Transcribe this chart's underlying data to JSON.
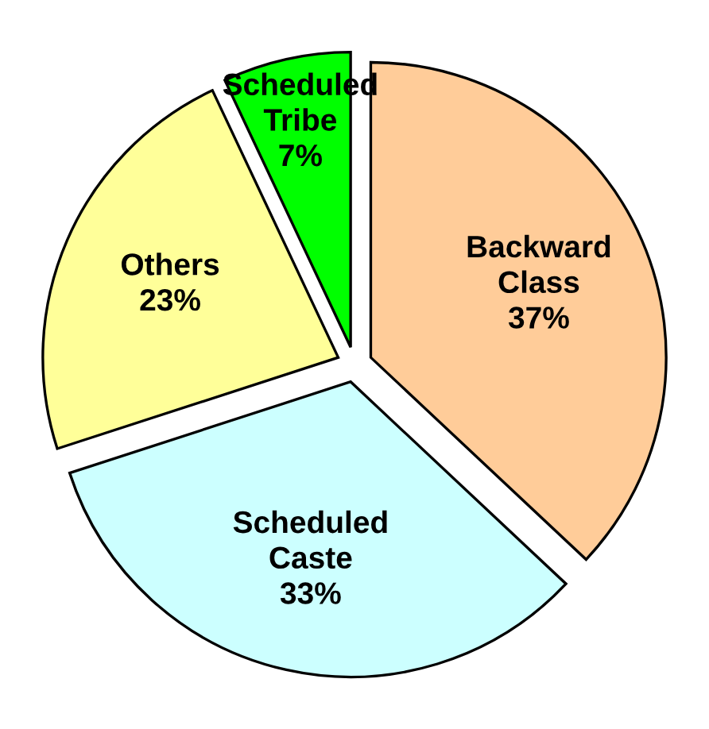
{
  "chart_data": {
    "type": "pie",
    "categories": [
      "Backward Class",
      "Scheduled Caste",
      "Others",
      "Scheduled Tribe"
    ],
    "values": [
      37,
      33,
      23,
      7
    ],
    "colors": [
      "#ffcc99",
      "#ccffff",
      "#ffff99",
      "#00ff00"
    ],
    "legend": false,
    "value_labels": [
      "37%",
      "33%",
      "23%",
      "7%"
    ]
  }
}
